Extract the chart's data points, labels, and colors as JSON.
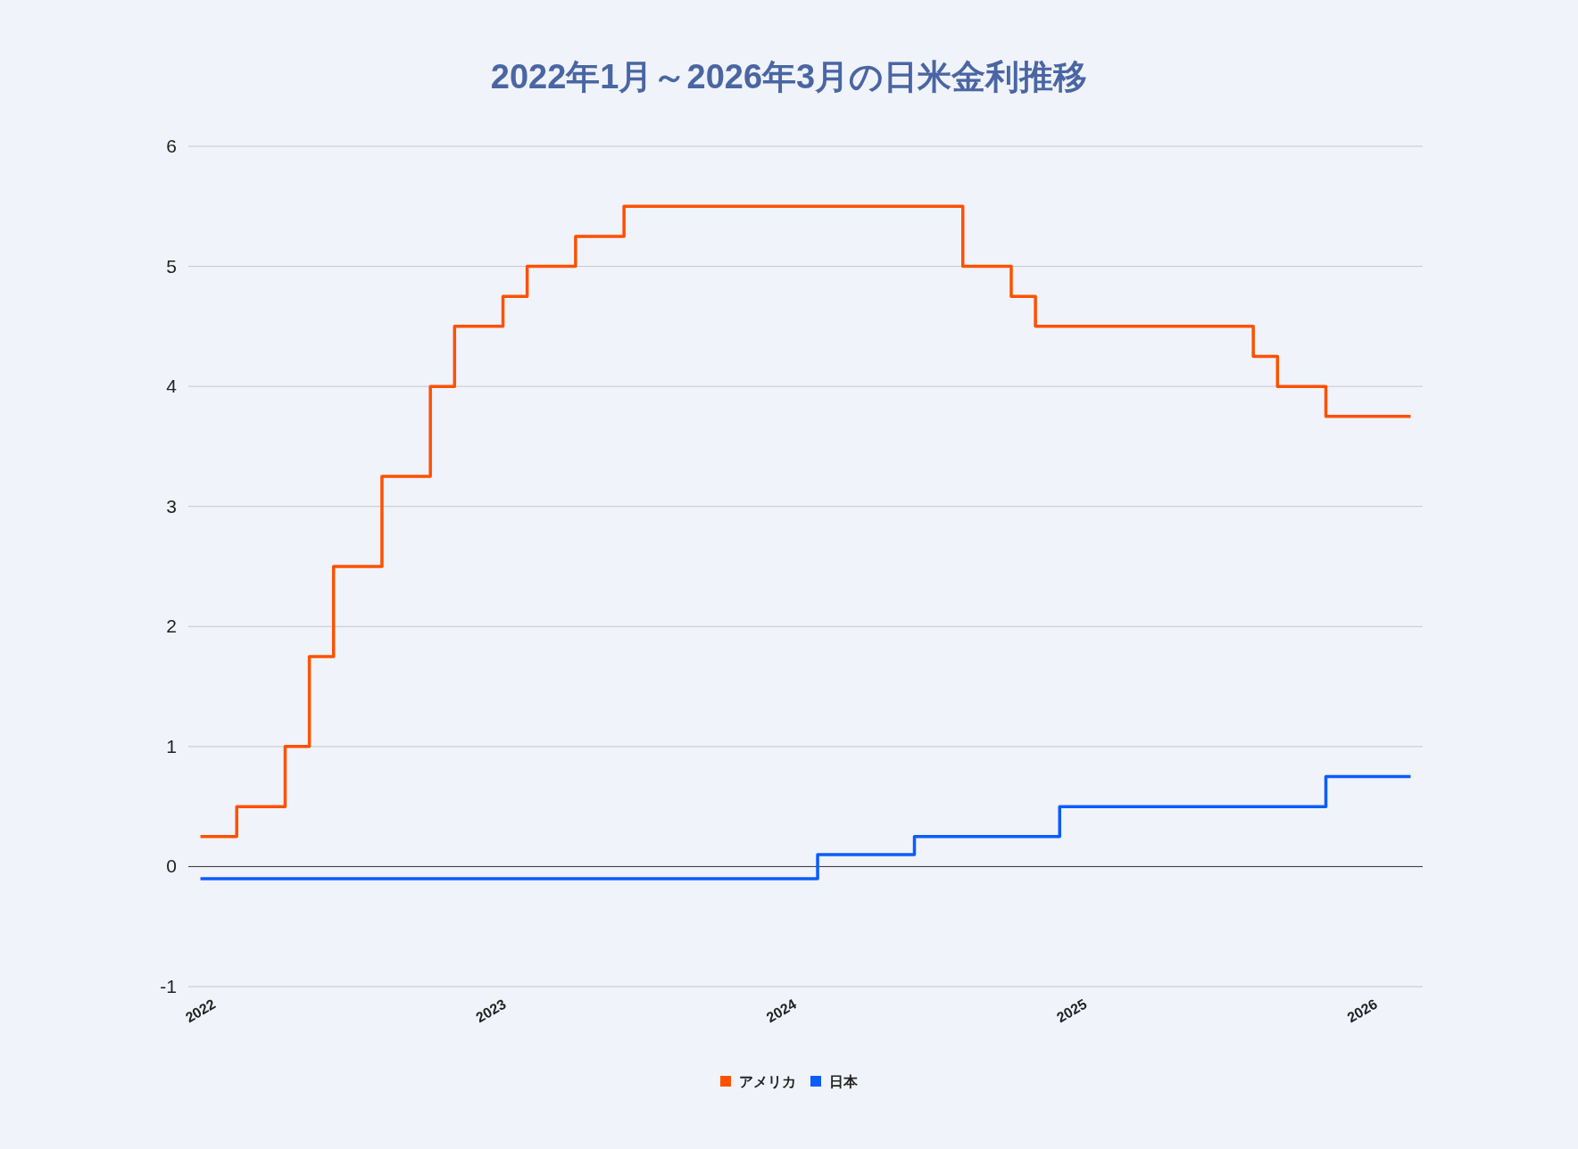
{
  "chart_data": {
    "type": "step",
    "title": "2022年1月～2026年3月の日米金利推移",
    "categories": [
      "2022",
      null,
      null,
      null,
      null,
      null,
      null,
      null,
      null,
      null,
      null,
      null,
      "2023",
      null,
      null,
      null,
      null,
      null,
      null,
      null,
      null,
      null,
      null,
      null,
      "2024",
      null,
      null,
      null,
      null,
      null,
      null,
      null,
      null,
      null,
      null,
      null,
      "2025",
      null,
      null,
      null,
      null,
      null,
      null,
      null,
      null,
      null,
      null,
      null,
      "2026",
      null,
      null
    ],
    "series": [
      {
        "name": "アメリカ",
        "color": "#ff5000",
        "values": [
          0.25,
          0.25,
          0.5,
          0.5,
          1,
          1.75,
          2.5,
          2.5,
          3.25,
          3.25,
          4,
          4.5,
          4.5,
          4.75,
          5,
          5,
          5.25,
          5.25,
          5.5,
          5.5,
          5.5,
          5.5,
          5.5,
          5.5,
          5.5,
          5.5,
          5.5,
          5.5,
          5.5,
          5.5,
          5.5,
          5.5,
          5,
          5,
          4.75,
          4.5,
          4.5,
          4.5,
          4.5,
          4.5,
          4.5,
          4.5,
          4.5,
          4.5,
          4.25,
          4,
          4,
          3.75,
          3.75,
          3.75,
          3.75
        ]
      },
      {
        "name": "日本",
        "color": "#0b5cff",
        "values": [
          -0.1,
          -0.1,
          -0.1,
          -0.1,
          -0.1,
          -0.1,
          -0.1,
          -0.1,
          -0.1,
          -0.1,
          -0.1,
          -0.1,
          -0.1,
          -0.1,
          -0.1,
          -0.1,
          -0.1,
          -0.1,
          -0.1,
          -0.1,
          -0.1,
          -0.1,
          -0.1,
          -0.1,
          -0.1,
          -0.1,
          0.1,
          0.1,
          0.1,
          0.1,
          0.25,
          0.25,
          0.25,
          0.25,
          0.25,
          0.25,
          0.5,
          0.5,
          0.5,
          0.5,
          0.5,
          0.5,
          0.5,
          0.5,
          0.5,
          0.5,
          0.5,
          0.75,
          0.75,
          0.75,
          0.75
        ]
      }
    ],
    "ylim": [
      -1,
      6
    ],
    "yticks": [
      -1,
      0,
      1,
      2,
      3,
      4,
      5,
      6
    ],
    "grid": "y",
    "legend": "bottom",
    "line_style": "solid",
    "ref_lines": [
      {
        "axis": "y",
        "value": 0,
        "color": "#333333"
      }
    ]
  }
}
